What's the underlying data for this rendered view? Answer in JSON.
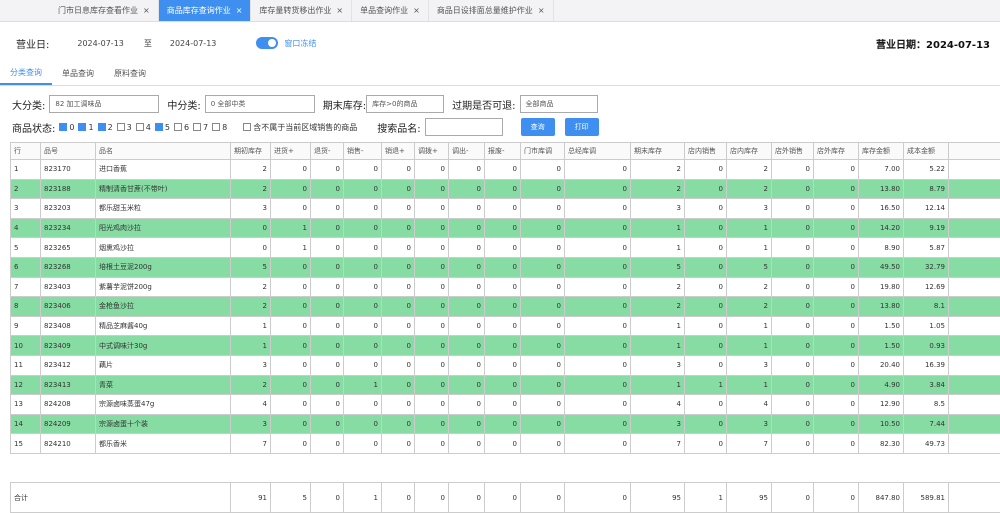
{
  "tabs": [
    "门市日息库存查看作业",
    "商品库存查询作业",
    "库存量转货移出作业",
    "单品查询作业",
    "商品日设排面总量维护作业"
  ],
  "toolbar": {
    "label": "营业日:",
    "from": "2024-07-13",
    "to_sep": "至",
    "to": "2024-07-13",
    "toggle": "窗口冻结",
    "biz_date": "营业日期：2024-07-13"
  },
  "subtabs": [
    "分类查询",
    "单品查询",
    "原料查询"
  ],
  "filters": {
    "big_label": "大分类:",
    "big": "82 加工调味品",
    "mid_label": "中分类:",
    "mid": "0 全部中类",
    "stock_label": "期末库存:",
    "stock": "库存>0的商品",
    "ret_label": "过期是否可退:",
    "ret": "全部商品",
    "status_label": "商品状态:",
    "status": [
      {
        "label": "0",
        "on": true
      },
      {
        "label": "1",
        "on": true
      },
      {
        "label": "2",
        "on": true
      },
      {
        "label": "3",
        "on": false
      },
      {
        "label": "4",
        "on": false
      },
      {
        "label": "5",
        "on": true
      },
      {
        "label": "6",
        "on": false
      },
      {
        "label": "7",
        "on": false
      },
      {
        "label": "8",
        "on": false
      }
    ],
    "extra": "含不属于当前区域销售的商品",
    "search_label": "搜索品名:",
    "query": "查询",
    "print": "打印"
  },
  "table": {
    "columns": [
      "行",
      "品号",
      "品名",
      "期初库存",
      "进货+",
      "退货-",
      "销售-",
      "销退+",
      "调拨+",
      "调出-",
      "报废-",
      "门市库调",
      "总经库调",
      "期末库存",
      "店内销售",
      "店内库存",
      "店外销售",
      "店外库存",
      "库存金额",
      "成本金额"
    ],
    "rows": [
      [
        "1",
        "823170",
        "进口香蕉",
        "2",
        "0",
        "0",
        "0",
        "0",
        "0",
        "0",
        "0",
        "0",
        "0",
        "2",
        "0",
        "2",
        "0",
        "0",
        "7.00",
        "5.22"
      ],
      [
        "2",
        "823188",
        "精制清香甘蔗(不带叶)",
        "2",
        "0",
        "0",
        "0",
        "0",
        "0",
        "0",
        "0",
        "0",
        "0",
        "2",
        "0",
        "2",
        "0",
        "0",
        "13.80",
        "8.79"
      ],
      [
        "3",
        "823203",
        "都乐甜玉米粒",
        "3",
        "0",
        "0",
        "0",
        "0",
        "0",
        "0",
        "0",
        "0",
        "0",
        "3",
        "0",
        "3",
        "0",
        "0",
        "16.50",
        "12.14"
      ],
      [
        "4",
        "823234",
        "阳光鸡肉沙拉",
        "0",
        "1",
        "0",
        "0",
        "0",
        "0",
        "0",
        "0",
        "0",
        "0",
        "1",
        "0",
        "1",
        "0",
        "0",
        "14.20",
        "9.19"
      ],
      [
        "5",
        "823265",
        "烟熏鸡沙拉",
        "0",
        "1",
        "0",
        "0",
        "0",
        "0",
        "0",
        "0",
        "0",
        "0",
        "1",
        "0",
        "1",
        "0",
        "0",
        "8.90",
        "5.87"
      ],
      [
        "6",
        "823268",
        "培根土豆泥200g",
        "5",
        "0",
        "0",
        "0",
        "0",
        "0",
        "0",
        "0",
        "0",
        "0",
        "5",
        "0",
        "5",
        "0",
        "0",
        "49.50",
        "32.79"
      ],
      [
        "7",
        "823403",
        "紫薯芋泥饼200g",
        "2",
        "0",
        "0",
        "0",
        "0",
        "0",
        "0",
        "0",
        "0",
        "0",
        "2",
        "0",
        "2",
        "0",
        "0",
        "19.80",
        "12.69"
      ],
      [
        "8",
        "823406",
        "金枪鱼沙拉",
        "2",
        "0",
        "0",
        "0",
        "0",
        "0",
        "0",
        "0",
        "0",
        "0",
        "2",
        "0",
        "2",
        "0",
        "0",
        "13.80",
        "8.1"
      ],
      [
        "9",
        "823408",
        "精品芝麻酱40g",
        "1",
        "0",
        "0",
        "0",
        "0",
        "0",
        "0",
        "0",
        "0",
        "0",
        "1",
        "0",
        "1",
        "0",
        "0",
        "1.50",
        "1.05"
      ],
      [
        "10",
        "823409",
        "中式调味汁30g",
        "1",
        "0",
        "0",
        "0",
        "0",
        "0",
        "0",
        "0",
        "0",
        "0",
        "1",
        "0",
        "1",
        "0",
        "0",
        "1.50",
        "0.93"
      ],
      [
        "11",
        "823412",
        "藕片",
        "3",
        "0",
        "0",
        "0",
        "0",
        "0",
        "0",
        "0",
        "0",
        "0",
        "3",
        "0",
        "3",
        "0",
        "0",
        "20.40",
        "16.39"
      ],
      [
        "12",
        "823413",
        "青菜",
        "2",
        "0",
        "0",
        "1",
        "0",
        "0",
        "0",
        "0",
        "0",
        "0",
        "1",
        "1",
        "1",
        "0",
        "0",
        "4.90",
        "3.84"
      ],
      [
        "13",
        "824208",
        "宗源卤味蒸蛋47g",
        "4",
        "0",
        "0",
        "0",
        "0",
        "0",
        "0",
        "0",
        "0",
        "0",
        "4",
        "0",
        "4",
        "0",
        "0",
        "12.90",
        "8.5"
      ],
      [
        "14",
        "824209",
        "宗源卤蛋十个装",
        "3",
        "0",
        "0",
        "0",
        "0",
        "0",
        "0",
        "0",
        "0",
        "0",
        "3",
        "0",
        "3",
        "0",
        "0",
        "10.50",
        "7.44"
      ],
      [
        "15",
        "824210",
        "都乐香米",
        "7",
        "0",
        "0",
        "0",
        "0",
        "0",
        "0",
        "0",
        "0",
        "0",
        "7",
        "0",
        "7",
        "0",
        "0",
        "82.30",
        "49.73"
      ]
    ],
    "total": [
      "合计",
      "91",
      "5",
      "0",
      "1",
      "0",
      "0",
      "0",
      "0",
      "0",
      "0",
      "95",
      "1",
      "95",
      "0",
      "0",
      "847.80",
      "589.81"
    ]
  }
}
